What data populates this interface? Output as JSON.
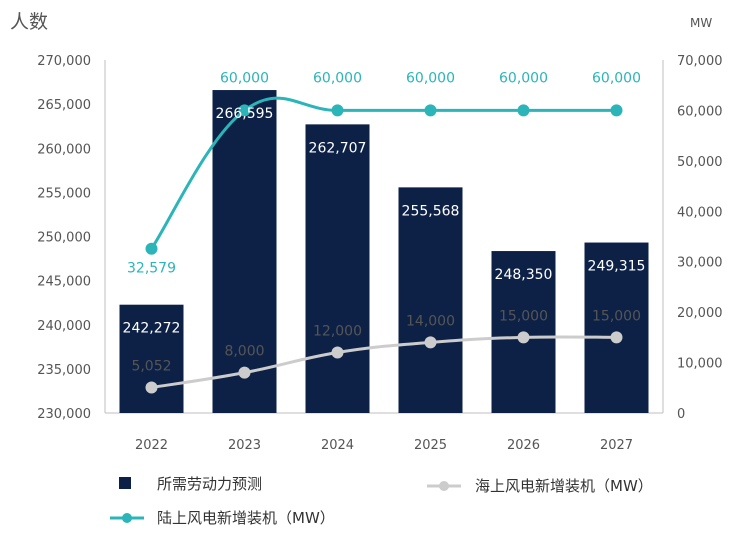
{
  "chart_data": {
    "type": "bar",
    "categories": [
      "2022",
      "2023",
      "2024",
      "2025",
      "2026",
      "2027"
    ],
    "y_left_label": "人数",
    "y_right_label": "MW",
    "y_left_lim": [
      230000,
      270000
    ],
    "y_left_ticks": [
      "230,000",
      "235,000",
      "240,000",
      "245,000",
      "250,000",
      "255,000",
      "260,000",
      "265,000",
      "270,000"
    ],
    "y_right_lim": [
      0,
      70000
    ],
    "y_right_ticks": [
      "0",
      "10,000",
      "20,000",
      "30,000",
      "40,000",
      "50,000",
      "60,000",
      "70,000"
    ],
    "series": [
      {
        "name": "所需劳动力预测",
        "type": "bar",
        "axis": "left",
        "color": "#0d2147",
        "values": [
          242272,
          266595,
          262707,
          255568,
          248350,
          249315
        ],
        "labels": [
          "242,272",
          "266,595",
          "262,707",
          "255,568",
          "248,350",
          "249,315"
        ]
      },
      {
        "name": "海上风电新增装机（MW）",
        "type": "line",
        "axis": "right",
        "color": "#cccccc",
        "values": [
          5052,
          8000,
          12000,
          14000,
          15000,
          15000
        ],
        "labels": [
          "5,052",
          "8,000",
          "12,000",
          "14,000",
          "15,000",
          "15,000"
        ]
      },
      {
        "name": "陆上风电新增装机（MW）",
        "type": "line",
        "axis": "right",
        "color": "#2bb5b8",
        "values": [
          32579,
          60000,
          60000,
          60000,
          60000,
          60000
        ],
        "labels": [
          "32,579",
          "60,000",
          "60,000",
          "60,000",
          "60,000",
          "60,000"
        ]
      }
    ]
  }
}
